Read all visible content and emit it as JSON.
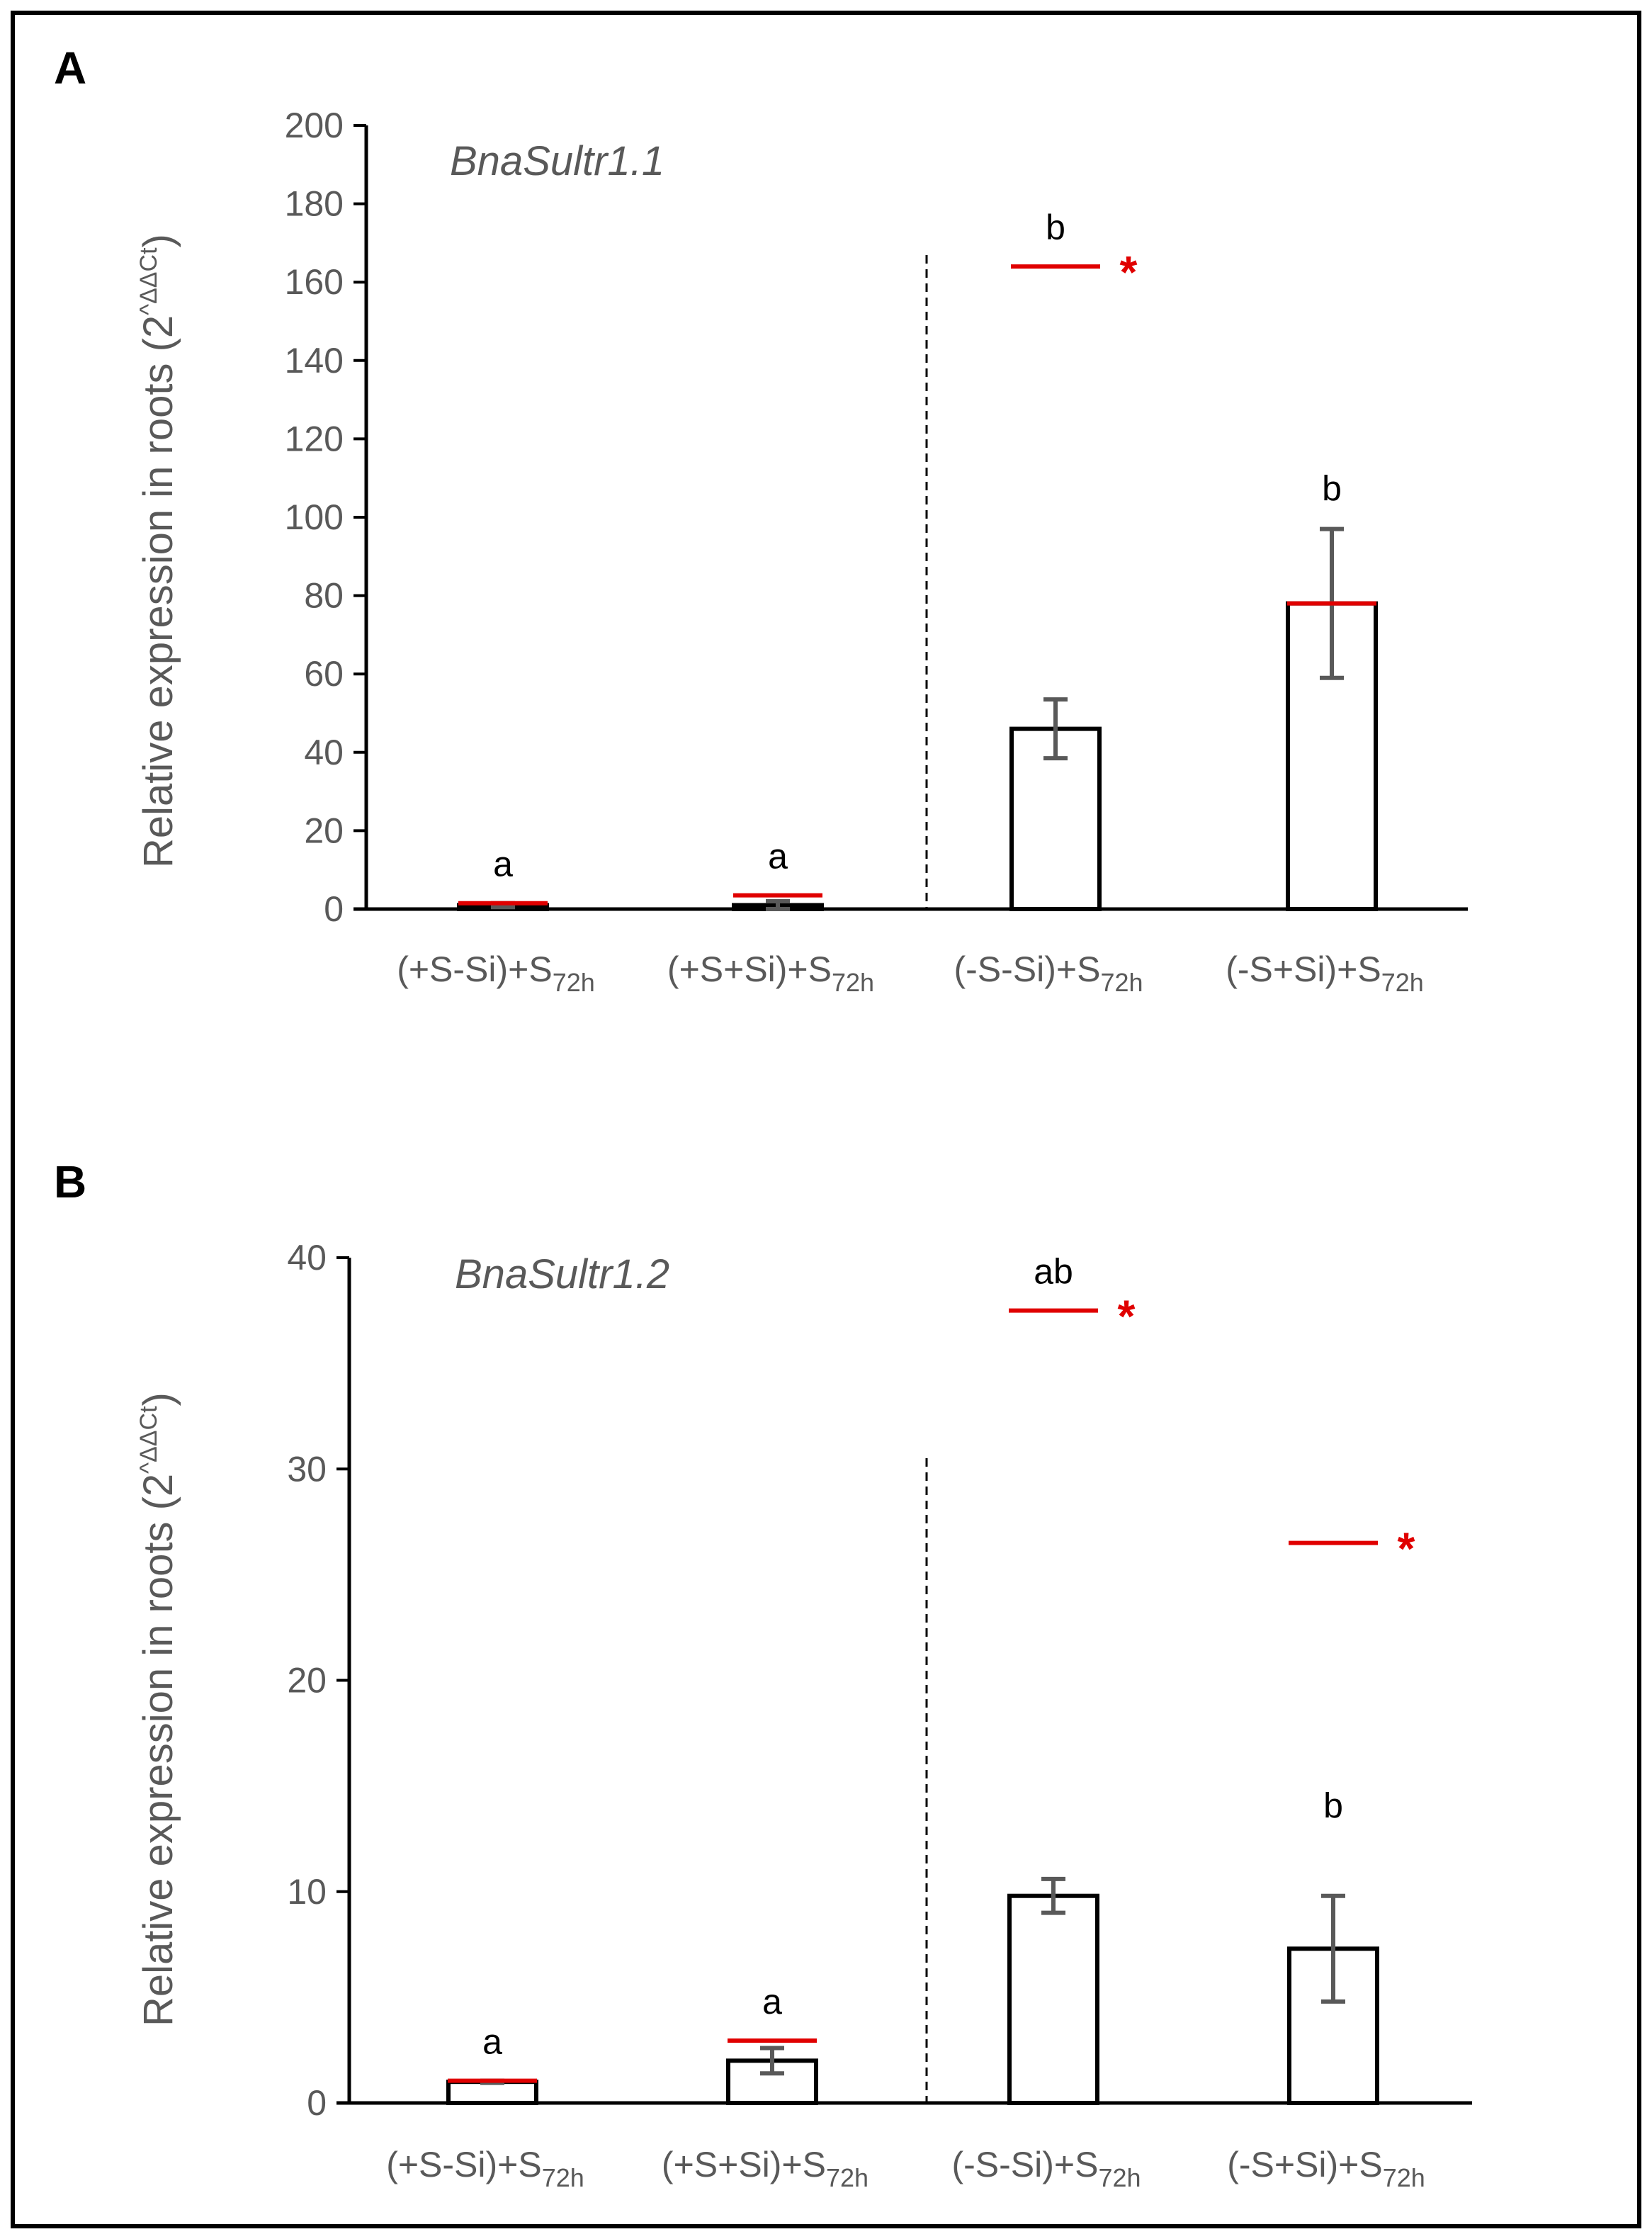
{
  "colors": {
    "axis": "#000000",
    "text": "#595959",
    "bar_fill": "#ffffff",
    "bar_stroke": "#000000",
    "error_bar": "#595959",
    "marker": "#e00000"
  },
  "chart_data": [
    {
      "panel": "A",
      "type": "bar",
      "gene": "BnaSultr1.1",
      "ylabel": "Relative expression in roots (2",
      "ylabel_sup": "^ΔΔCt",
      "ylabel_close": ")",
      "ylim": [
        0,
        200
      ],
      "yticks": [
        0,
        20,
        40,
        60,
        80,
        100,
        120,
        140,
        160,
        180,
        200
      ],
      "categories": [
        {
          "main": "(+S-Si)+S",
          "sub": "72h"
        },
        {
          "main": "(+S+Si)+S",
          "sub": "72h"
        },
        {
          "main": "(-S-Si)+S",
          "sub": "72h"
        },
        {
          "main": "(-S+Si)+S",
          "sub": "72h"
        }
      ],
      "values": [
        1,
        1,
        46,
        78
      ],
      "errors": [
        0.5,
        1,
        7.5,
        19
      ],
      "significance_letters": [
        "a",
        "a",
        "b",
        "b"
      ],
      "red_markers": [
        1.5,
        3.5,
        164,
        78
      ],
      "asterisks": [
        {
          "category": 2,
          "value": 164,
          "label": "*"
        }
      ],
      "divider_after_category": 1
    },
    {
      "panel": "B",
      "type": "bar",
      "gene": "BnaSultr1.2",
      "ylabel": "Relative expression in roots (2",
      "ylabel_sup": "^ΔΔCt",
      "ylabel_close": ")",
      "ylim": [
        0,
        40
      ],
      "yticks": [
        0,
        10,
        20,
        30,
        40
      ],
      "categories": [
        {
          "main": "(+S-Si)+S",
          "sub": "72h"
        },
        {
          "main": "(+S+Si)+S",
          "sub": "72h"
        },
        {
          "main": "(-S-Si)+S",
          "sub": "72h"
        },
        {
          "main": "(-S+Si)+S",
          "sub": "72h"
        }
      ],
      "values": [
        1,
        2,
        9.8,
        7.3
      ],
      "errors": [
        0.05,
        0.6,
        0.8,
        2.5
      ],
      "significance_letters": [
        "a",
        "a",
        "ab",
        "b"
      ],
      "red_markers": [
        1.05,
        2.95,
        37.5,
        26.5
      ],
      "asterisks": [
        {
          "category": 2,
          "value": 37.5,
          "label": "*"
        },
        {
          "category": 3,
          "value": 26.5,
          "label": "*"
        }
      ],
      "divider_after_category": 1
    }
  ]
}
